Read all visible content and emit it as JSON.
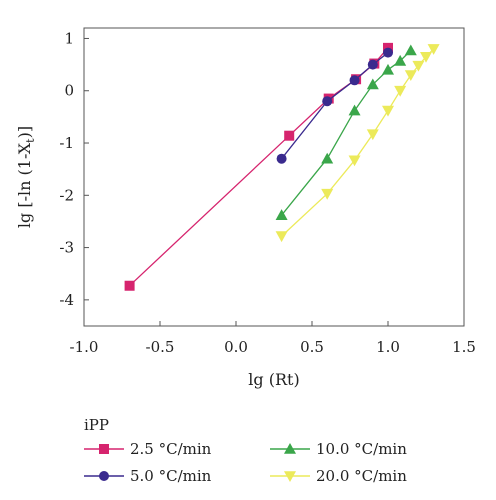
{
  "chart_data": {
    "type": "line",
    "title": "",
    "xlabel": "lg (Rt)",
    "ylabel_parts": {
      "main": "lg [-ln (1-X",
      "sub": "t",
      "end": ")]"
    },
    "xlim": [
      -1.0,
      1.5
    ],
    "ylim": [
      -4.5,
      1.2
    ],
    "xticks": [
      -1.0,
      -0.5,
      0.0,
      0.5,
      1.0,
      1.5
    ],
    "xtick_labels": [
      "-1.0",
      "-0.5",
      "0.0",
      "0.5",
      "1.0",
      "1.5"
    ],
    "yticks": [
      -4,
      -3,
      -2,
      -1,
      0,
      1
    ],
    "ytick_labels": [
      "-4",
      "-3",
      "-2",
      "-1",
      "0",
      "1"
    ],
    "grid": false,
    "legend_title": "iPP",
    "legend_position": "bottom",
    "series": [
      {
        "name": "2.5 °C/min",
        "color": "#d6246e",
        "marker": "square",
        "x": [
          -0.7,
          0.35,
          0.61,
          0.79,
          0.91,
          1.0
        ],
        "y": [
          -3.73,
          -0.86,
          -0.15,
          0.22,
          0.52,
          0.82
        ]
      },
      {
        "name": "5.0 °C/min",
        "color": "#3a2a8e",
        "marker": "circle",
        "x": [
          0.3,
          0.6,
          0.78,
          0.9,
          1.0
        ],
        "y": [
          -1.3,
          -0.2,
          0.2,
          0.5,
          0.73
        ]
      },
      {
        "name": "10.0 °C/min",
        "color": "#3aa64a",
        "marker": "triangle-up",
        "x": [
          0.3,
          0.6,
          0.78,
          0.9,
          1.0,
          1.08,
          1.15
        ],
        "y": [
          -2.38,
          -1.3,
          -0.38,
          0.12,
          0.4,
          0.57,
          0.77
        ]
      },
      {
        "name": "20.0 °C/min",
        "color": "#ecea5a",
        "marker": "triangle-down",
        "x": [
          0.3,
          0.6,
          0.78,
          0.9,
          1.0,
          1.08,
          1.15,
          1.2,
          1.25,
          1.3
        ],
        "y": [
          -2.78,
          -1.97,
          -1.33,
          -0.83,
          -0.38,
          0.0,
          0.3,
          0.48,
          0.65,
          0.8
        ]
      }
    ]
  }
}
